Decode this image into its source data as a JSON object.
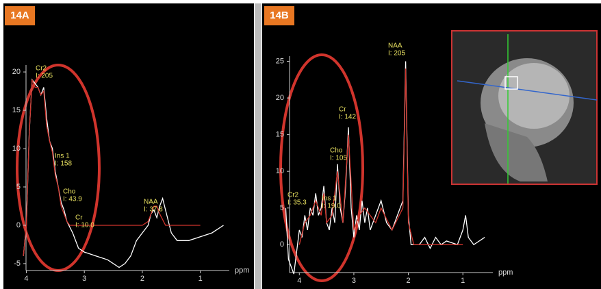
{
  "chart_data": [
    {
      "type": "line",
      "title": "14A",
      "x_label": "ppm",
      "xlim": [
        4.1,
        0.5
      ],
      "xticks": [
        4,
        3,
        2,
        1
      ],
      "ylim": [
        -5.9,
        20.9
      ],
      "yticks": [
        -5,
        0,
        5,
        10,
        15,
        20
      ],
      "series": [
        {
          "color": "#ffffff",
          "x": [
            4.05,
            4.0,
            3.95,
            3.9,
            3.85,
            3.8,
            3.75,
            3.7,
            3.65,
            3.6,
            3.55,
            3.5,
            3.45,
            3.4,
            3.35,
            3.3,
            3.2,
            3.1,
            3.0,
            2.8,
            2.6,
            2.4,
            2.3,
            2.2,
            2.1,
            2.0,
            1.9,
            1.85,
            1.8,
            1.75,
            1.7,
            1.65,
            1.6,
            1.5,
            1.4,
            1.2,
            1.0,
            0.8,
            0.6
          ],
          "values": [
            -4,
            0,
            12,
            19,
            18.5,
            18,
            17,
            18,
            14,
            11,
            10,
            7,
            5,
            3,
            2,
            0.5,
            -1,
            -3,
            -3.5,
            -4,
            -4.5,
            -5.5,
            -5,
            -4,
            -2,
            -1,
            0,
            1.5,
            2,
            1,
            2.5,
            3.5,
            2,
            -1,
            -2,
            -2,
            -1.5,
            -1,
            0
          ]
        },
        {
          "color": "#d0342c",
          "x": [
            4.05,
            4.0,
            3.95,
            3.9,
            3.85,
            3.8,
            3.75,
            3.7,
            3.65,
            3.6,
            3.55,
            3.5,
            3.45,
            3.4,
            3.35,
            3.3,
            3.25,
            2.0,
            1.9,
            1.8,
            1.75,
            1.7,
            1.6,
            1.0
          ],
          "values": [
            -4,
            0,
            12,
            19,
            18,
            18,
            17,
            17.5,
            13,
            11,
            9.5,
            6.5,
            5,
            2.5,
            1.5,
            0.5,
            0,
            0,
            0.5,
            2.5,
            2.5,
            1.5,
            0,
            0
          ]
        }
      ],
      "annotations": [
        {
          "name": "Cr2",
          "intensity": "I: 205"
        },
        {
          "name": "Ins 1",
          "intensity": "I: 158"
        },
        {
          "name": "Cho",
          "intensity": "I: 43.9"
        },
        {
          "name": "Cr",
          "intensity": "I: 10.0"
        },
        {
          "name": "NAA",
          "intensity": "I: 37.8"
        }
      ]
    },
    {
      "type": "line",
      "title": "14B",
      "x_label": "ppm",
      "xlim": [
        4.28,
        0.45
      ],
      "xticks": [
        4,
        3,
        2,
        1
      ],
      "ylim": [
        -3.8,
        25.7
      ],
      "yticks": [
        0,
        5,
        10,
        15,
        20,
        25
      ],
      "series": [
        {
          "color": "#ffffff",
          "x": [
            4.25,
            4.2,
            4.1,
            4.0,
            3.95,
            3.9,
            3.85,
            3.8,
            3.75,
            3.7,
            3.65,
            3.6,
            3.55,
            3.5,
            3.45,
            3.4,
            3.35,
            3.3,
            3.25,
            3.2,
            3.15,
            3.1,
            3.05,
            3.0,
            2.95,
            2.9,
            2.85,
            2.8,
            2.75,
            2.7,
            2.6,
            2.5,
            2.4,
            2.3,
            2.2,
            2.1,
            2.05,
            2.0,
            1.95,
            1.8,
            1.7,
            1.6,
            1.5,
            1.4,
            1.3,
            1.1,
            1.0,
            0.95,
            0.9,
            0.8,
            0.6
          ],
          "values": [
            5,
            -2,
            -4,
            2,
            1,
            4,
            2,
            5,
            4,
            7,
            4,
            5,
            8,
            3,
            2,
            5,
            3,
            11,
            5,
            3,
            8,
            16,
            5,
            1,
            4,
            2,
            6,
            3,
            5,
            2,
            4,
            6,
            3,
            2,
            4,
            6,
            25,
            4,
            0,
            0,
            1,
            -0.5,
            1,
            0,
            0.5,
            0,
            2,
            4,
            1,
            0,
            1
          ]
        },
        {
          "color": "#d0342c",
          "x": [
            4.0,
            3.9,
            3.8,
            3.7,
            3.6,
            3.55,
            3.5,
            3.4,
            3.3,
            3.2,
            3.1,
            3.0,
            2.9,
            2.8,
            2.6,
            2.5,
            2.3,
            2.1,
            2.05,
            2.0,
            1.9,
            1.0
          ],
          "values": [
            0,
            3,
            4,
            6,
            4,
            7,
            3,
            4,
            10,
            3,
            15,
            2,
            4,
            5,
            3,
            5,
            2,
            5,
            24,
            3,
            0,
            0
          ]
        }
      ],
      "annotations": [
        {
          "name": "NAA",
          "intensity": "I: 205"
        },
        {
          "name": "Cr",
          "intensity": "I: 142"
        },
        {
          "name": "Cho",
          "intensity": "I: 105"
        },
        {
          "name": "Ins 1",
          "intensity": "I: 19.0"
        },
        {
          "name": "Cr2",
          "intensity": "I: 35.3"
        }
      ]
    }
  ]
}
